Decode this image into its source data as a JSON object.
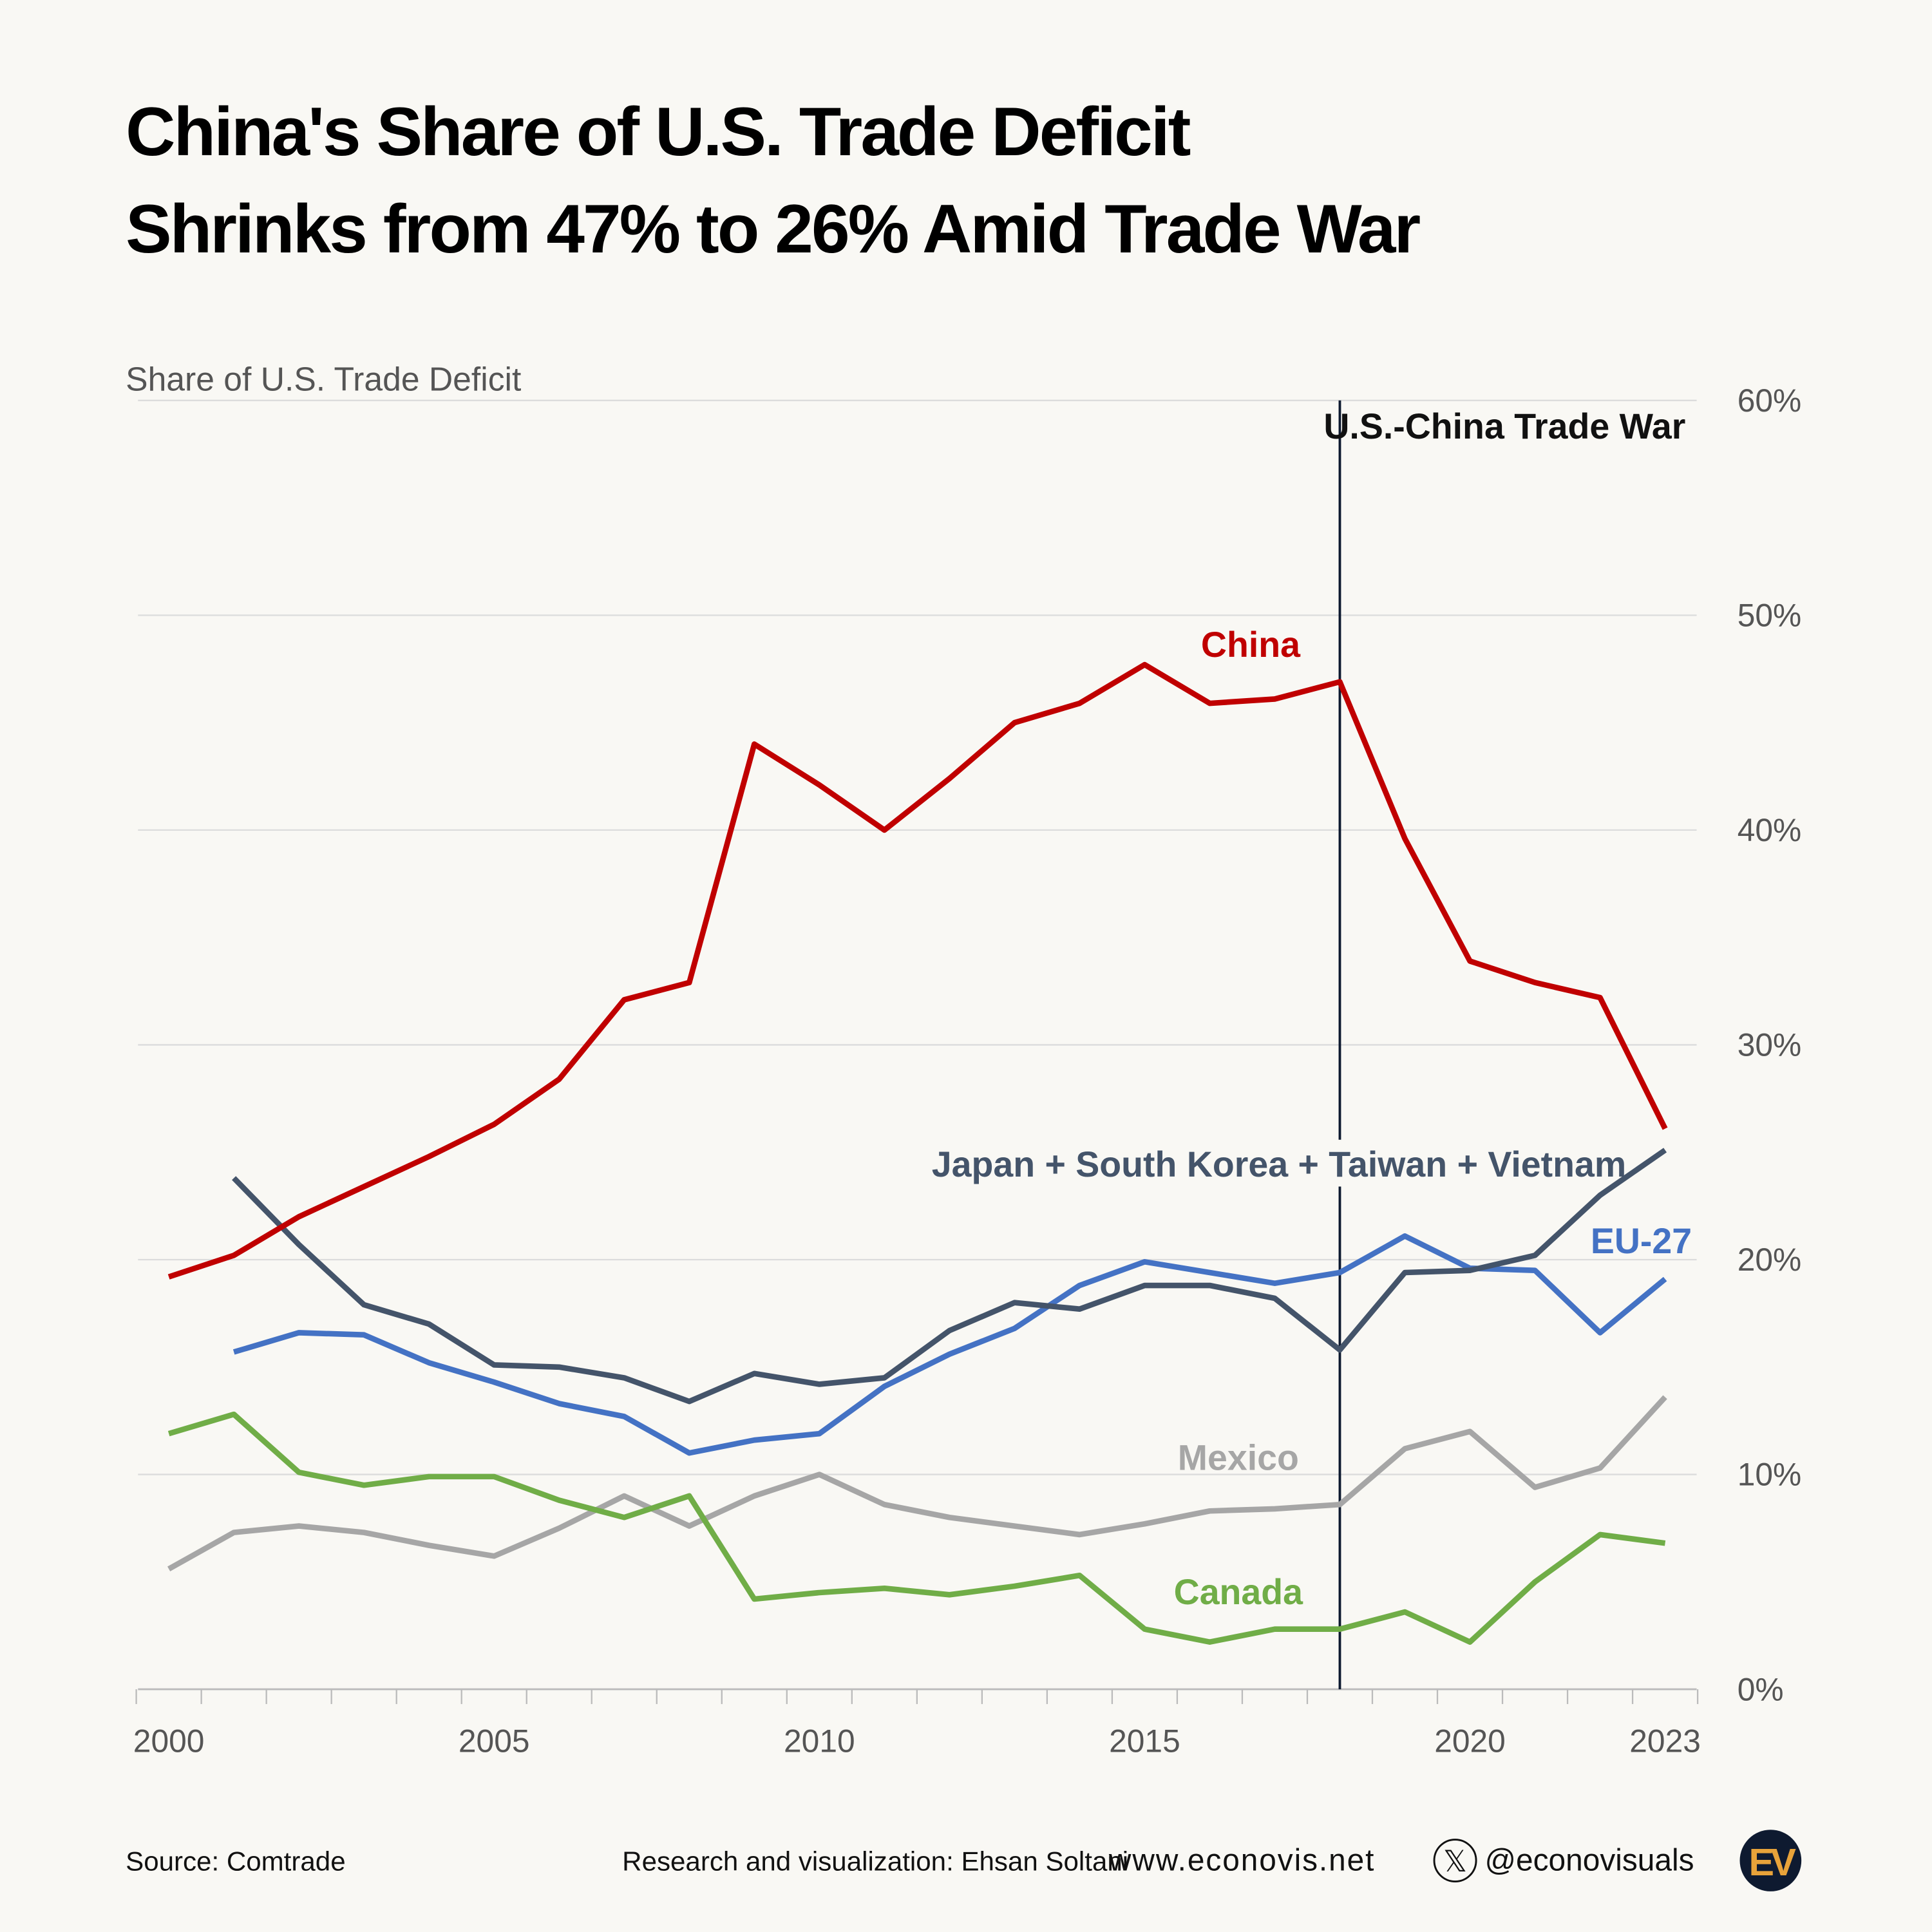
{
  "title_lines": [
    "China's Share of U.S. Trade Deficit",
    "Shrinks from 47% to 26% Amid Trade War"
  ],
  "footer": {
    "source": "Source: Comtrade",
    "credit": "Research and visualization: Ehsan Soltani",
    "website": "www.econovis.net",
    "handle": "@econovisuals",
    "logo_text": "EV"
  },
  "chart_data": {
    "type": "line",
    "title": "China's Share of U.S. Trade Deficit Shrinks from 47% to 26% Amid Trade War",
    "ylabel": "Share of U.S. Trade Deficit",
    "xlabel": "",
    "xlim": [
      2000,
      2023
    ],
    "ylim": [
      0,
      60
    ],
    "x_tick_labels": [
      "2000",
      "2005",
      "2010",
      "2015",
      "2020",
      "2023"
    ],
    "y_tick_labels": [
      "0%",
      "10%",
      "20%",
      "30%",
      "40%",
      "50%",
      "60%"
    ],
    "grid": "horizontal",
    "annotation": {
      "label": "U.S.-China Trade War",
      "x": 2018
    },
    "x": [
      2000,
      2001,
      2002,
      2003,
      2004,
      2005,
      2006,
      2007,
      2008,
      2009,
      2010,
      2011,
      2012,
      2013,
      2014,
      2015,
      2016,
      2017,
      2018,
      2019,
      2020,
      2021,
      2022,
      2023
    ],
    "series": [
      {
        "name": "China",
        "color": "#c00000",
        "values": [
          19.2,
          20.2,
          22.0,
          23.4,
          24.8,
          26.3,
          28.4,
          32.1,
          32.9,
          44.0,
          42.1,
          40.0,
          42.4,
          45.0,
          45.9,
          47.7,
          45.9,
          46.1,
          46.9,
          39.6,
          33.9,
          32.9,
          32.2,
          26.1
        ]
      },
      {
        "name": "Japan + South Korea + Taiwan + Vietnam",
        "color": "#44546a",
        "values": [
          null,
          23.8,
          20.7,
          17.9,
          17.0,
          15.1,
          15.0,
          14.5,
          13.4,
          14.7,
          14.2,
          14.5,
          16.7,
          18.0,
          17.7,
          18.8,
          18.8,
          18.2,
          15.8,
          19.4,
          19.5,
          20.2,
          23.0,
          25.1
        ]
      },
      {
        "name": "EU-27",
        "color": "#4472c4",
        "values": [
          null,
          15.7,
          16.6,
          16.5,
          15.2,
          14.3,
          13.3,
          12.7,
          11.0,
          11.6,
          11.9,
          14.1,
          15.6,
          16.8,
          18.8,
          19.9,
          19.4,
          18.9,
          19.4,
          21.1,
          19.6,
          19.5,
          16.6,
          19.1
        ]
      },
      {
        "name": "Mexico",
        "color": "#a6a6a6",
        "values": [
          5.6,
          7.3,
          7.6,
          7.3,
          6.7,
          6.2,
          7.5,
          9.0,
          7.6,
          9.0,
          10.0,
          8.6,
          8.0,
          7.6,
          7.2,
          7.7,
          8.3,
          8.4,
          8.6,
          11.2,
          12.0,
          9.4,
          10.3,
          13.6
        ]
      },
      {
        "name": "Canada",
        "color": "#70ad47",
        "values": [
          11.9,
          12.8,
          10.1,
          9.5,
          9.9,
          9.9,
          8.8,
          8.0,
          9.0,
          4.2,
          4.5,
          4.7,
          4.4,
          4.8,
          5.3,
          2.8,
          2.2,
          2.8,
          2.8,
          3.6,
          2.2,
          5.0,
          7.2,
          6.8
        ]
      }
    ]
  }
}
